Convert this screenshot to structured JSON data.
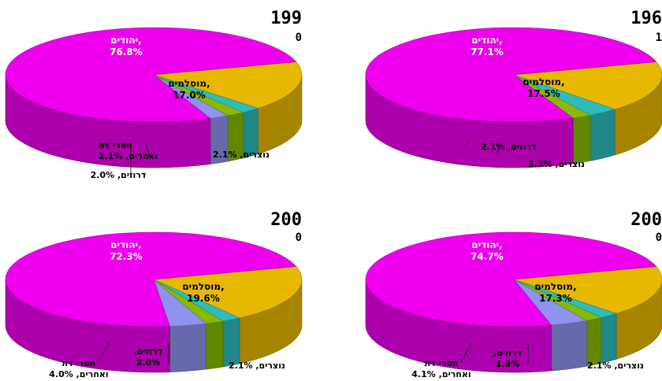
{
  "colors": {
    "jews": "#ee00ee",
    "muslims": "#e6b800",
    "christians": "#2ebcbc",
    "druze": "#88bb00",
    "other": "#8f92ee"
  },
  "chart_data": [
    {
      "type": "pie",
      "title": "199",
      "title_sub": "0",
      "slices": [
        {
          "key": "jews",
          "label": "יהודים,",
          "value": 76.8,
          "value_text": "76.8%"
        },
        {
          "key": "muslims",
          "label": "מוסלמים,",
          "value": 17.0,
          "value_text": "17.0%"
        },
        {
          "key": "christians",
          "label": "נוצרים,",
          "value": 2.1,
          "value_text": "2.1%"
        },
        {
          "key": "druze",
          "label": "דרוזים,",
          "value": 2.0,
          "value_text": "2.0%"
        },
        {
          "key": "other",
          "label": "חסרי דת ואחרים,",
          "value": 2.1,
          "value_text": "2.1%"
        }
      ]
    },
    {
      "type": "pie",
      "title": "196",
      "title_sub": "1",
      "slices": [
        {
          "key": "jews",
          "label": "יהודים,",
          "value": 77.1,
          "value_text": "77.1%"
        },
        {
          "key": "muslims",
          "label": "מוסלמים,",
          "value": 17.5,
          "value_text": "17.5%"
        },
        {
          "key": "christians",
          "label": "נוצרים,",
          "value": 3.3,
          "value_text": "3.3%"
        },
        {
          "key": "druze",
          "label": "דרוזים,",
          "value": 2.1,
          "value_text": "2.1%"
        }
      ]
    },
    {
      "type": "pie",
      "title": "200",
      "title_sub": "0",
      "slices": [
        {
          "key": "jews",
          "label": "יהודים,",
          "value": 72.3,
          "value_text": "72.3%"
        },
        {
          "key": "muslims",
          "label": "מוסלמים,",
          "value": 19.6,
          "value_text": "19.6%"
        },
        {
          "key": "christians",
          "label": "נוצרים,",
          "value": 2.1,
          "value_text": "2.1%"
        },
        {
          "key": "druze",
          "label": "דרוזים,",
          "value": 2.0,
          "value_text": "2.0%"
        },
        {
          "key": "other",
          "label": "חסרי דת ואחרים,",
          "value": 4.0,
          "value_text": "4.0%"
        }
      ]
    },
    {
      "type": "pie",
      "title": "200",
      "title_sub": "0",
      "slices": [
        {
          "key": "jews",
          "label": "יהודים,",
          "value": 74.7,
          "value_text": "74.7%"
        },
        {
          "key": "muslims",
          "label": "מוסלמים,",
          "value": 17.3,
          "value_text": "17.3%"
        },
        {
          "key": "christians",
          "label": "נוצרים,",
          "value": 2.1,
          "value_text": "2.1%"
        },
        {
          "key": "druze",
          "label": "דרוזים,",
          "value": 1.9,
          "value_text": "1.9%"
        },
        {
          "key": "other",
          "label": "חסרי דת ואחרים,",
          "value": 4.1,
          "value_text": "4.1%"
        }
      ]
    }
  ]
}
